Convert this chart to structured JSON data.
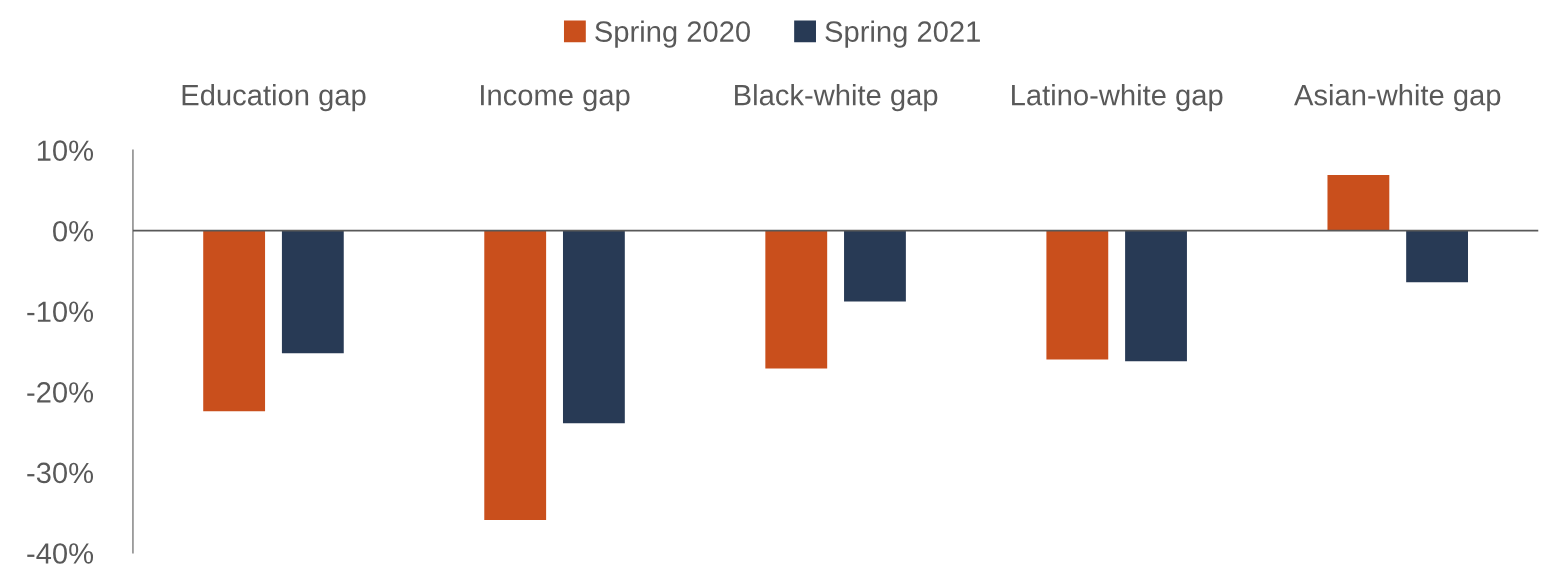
{
  "chart_data": {
    "type": "bar",
    "categories": [
      "Education gap",
      "Income gap",
      "Black-white gap",
      "Latino-white gap",
      "Asian-white gap"
    ],
    "series": [
      {
        "name": "Spring 2020",
        "color": "#c94f1c",
        "values": [
          -22.4,
          -35.9,
          -17.1,
          -16.0,
          6.9
        ]
      },
      {
        "name": "Spring 2021",
        "color": "#283a55",
        "values": [
          -15.2,
          -23.9,
          -8.8,
          -16.2,
          -6.4
        ]
      }
    ],
    "ylim": [
      -40,
      10
    ],
    "yticks": [
      {
        "value": 10,
        "label": "10%"
      },
      {
        "value": 0,
        "label": "0%"
      },
      {
        "value": -10,
        "label": "-10%"
      },
      {
        "value": -20,
        "label": "-20%"
      },
      {
        "value": -30,
        "label": "-30%"
      },
      {
        "value": -40,
        "label": "-40%"
      }
    ],
    "ref_lines": [
      {
        "axis": "y",
        "value": 0,
        "color": "#595959",
        "line_style": "solid"
      }
    ],
    "legend": "top"
  }
}
